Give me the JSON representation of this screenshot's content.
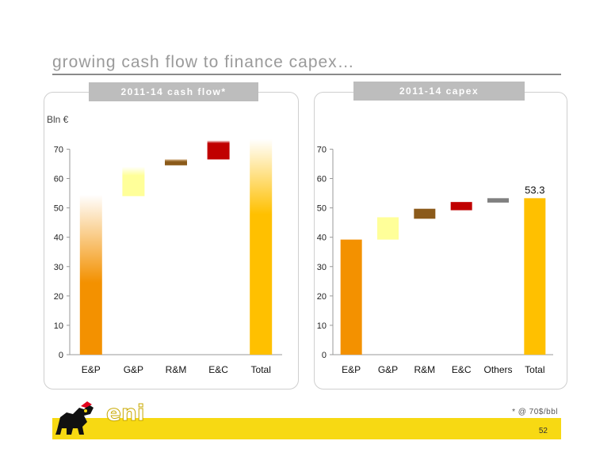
{
  "slide": {
    "title": "growing cash flow to finance capex…",
    "unit": "Bln €",
    "footnote": "* @ 70$/bbl",
    "page_number": "52",
    "logo_text": "eni"
  },
  "colors": {
    "orange": "#F39100",
    "yellow_gold": "#FFC000",
    "pale_yellow": "#FFFF99",
    "brown": "#8B5A1A",
    "red": "#C00000",
    "gray": "#808080",
    "footer_yellow": "#F7D913"
  },
  "chart_data": [
    {
      "type": "bar",
      "subtype": "waterfall",
      "title": "2011-14 cash flow*",
      "categories": [
        "E&P",
        "G&P",
        "R&M",
        "E&C",
        "Total"
      ],
      "series": [
        {
          "values": [
            {
              "category": "E&P",
              "start": 0,
              "end": 54.5,
              "color": "#F39100",
              "faded_top": true
            },
            {
              "category": "G&P",
              "start": 54,
              "end": 64,
              "color": "#FFFF99",
              "faded_top": true
            },
            {
              "category": "R&M",
              "start": 64.5,
              "end": 66.5,
              "color": "#8B5A1A",
              "faded_top": true
            },
            {
              "category": "E&C",
              "start": 66.5,
              "end": 73,
              "color": "#C00000",
              "faded_top": true
            },
            {
              "category": "Total",
              "start": 0,
              "end": 73.5,
              "color": "#FFC000",
              "faded_top": true
            }
          ]
        }
      ],
      "ylim": [
        0,
        75
      ],
      "yticks": [
        0,
        10,
        20,
        30,
        40,
        50,
        60,
        70
      ],
      "grid": false
    },
    {
      "type": "bar",
      "subtype": "waterfall",
      "title": "2011-14 capex",
      "categories": [
        "E&P",
        "G&P",
        "R&M",
        "E&C",
        "Others",
        "Total"
      ],
      "series": [
        {
          "values": [
            {
              "category": "E&P",
              "start": 0,
              "end": 39.2,
              "color": "#F39100"
            },
            {
              "category": "G&P",
              "start": 39.2,
              "end": 46.8,
              "color": "#FFFF99"
            },
            {
              "category": "R&M",
              "start": 46.3,
              "end": 49.7,
              "color": "#8B5A1A"
            },
            {
              "category": "E&C",
              "start": 49.2,
              "end": 52,
              "color": "#C00000"
            },
            {
              "category": "Others",
              "start": 51.8,
              "end": 53.3,
              "color": "#808080"
            },
            {
              "category": "Total",
              "start": 0,
              "end": 53.3,
              "color": "#FFC000",
              "label": "53.3"
            }
          ]
        }
      ],
      "ylim": [
        0,
        75
      ],
      "yticks": [
        0,
        10,
        20,
        30,
        40,
        50,
        60,
        70
      ],
      "grid": false
    }
  ]
}
